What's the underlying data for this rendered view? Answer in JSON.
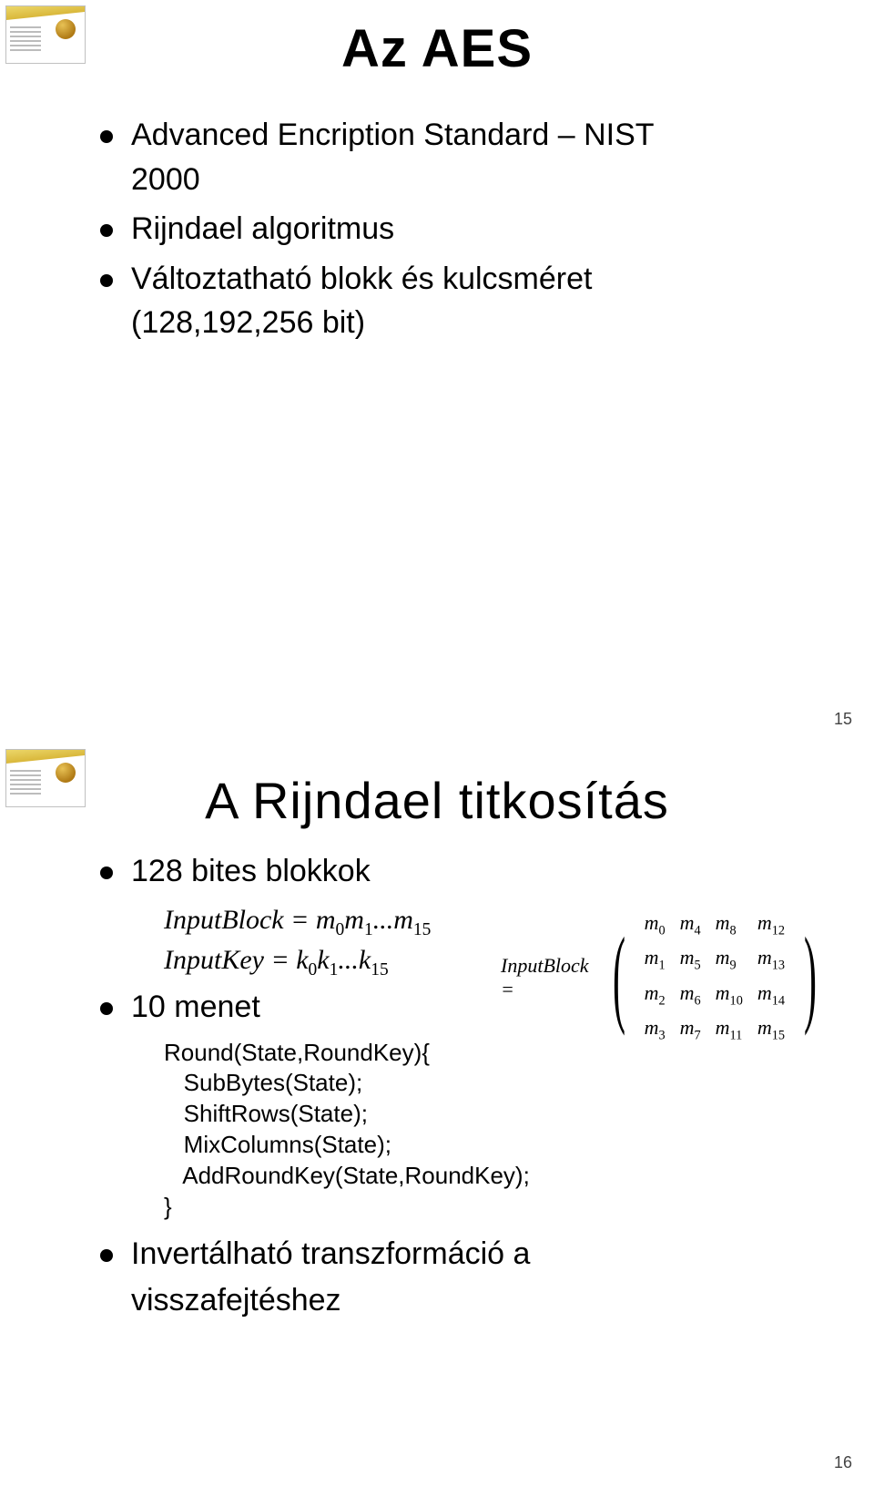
{
  "slide1": {
    "title": "Az AES",
    "bullets": [
      "Advanced Encription Standard – NIST",
      "Rijndael algoritmus",
      "Változtatható blokk és kulcsméret"
    ],
    "year": "2000",
    "sizes": "(128,192,256 bit)",
    "pagenum": "15"
  },
  "slide2": {
    "title": "A Rijndael titkosítás",
    "bullet_blocks": "128 bites blokkok",
    "math_inputblock": "InputBlock = m",
    "math_inputblock_sub": "0",
    "math_inputblock_m1": "m",
    "math_inputblock_sub1": "1",
    "math_dots": "...",
    "math_m15": "m",
    "math_m15_sub": "15",
    "math_inputkey": "InputKey = k",
    "math_inputkey_sub0": "0",
    "math_k1": "k",
    "math_k1_sub": "1",
    "math_k15": "k",
    "math_k15_sub": "15",
    "bullet_rounds": "10 menet",
    "code_l1": "Round(State,RoundKey){",
    "code_l2": "   SubBytes(State);",
    "code_l3": "   ShiftRows(State);",
    "code_l4": "   MixColumns(State);",
    "code_l5": "   AddRoundKey(State,RoundKey);",
    "code_l6": "}",
    "bullet_invert1": "Invertálható transzformáció a",
    "bullet_invert2": "visszafejtéshez",
    "matrix_lhs": "InputBlock =",
    "matrix": [
      [
        "m<sub>0</sub>",
        "m<sub>4</sub>",
        "m<sub>8</sub>",
        "m<sub>12</sub>"
      ],
      [
        "m<sub>1</sub>",
        "m<sub>5</sub>",
        "m<sub>9</sub>",
        "m<sub>13</sub>"
      ],
      [
        "m<sub>2</sub>",
        "m<sub>6</sub>",
        "m<sub>10</sub>",
        "m<sub>14</sub>"
      ],
      [
        "m<sub>3</sub>",
        "m<sub>7</sub>",
        "m<sub>11</sub>",
        "m<sub>15</sub>"
      ]
    ],
    "pagenum": "16"
  },
  "colors": {
    "text": "#000000",
    "bullet": "#000000",
    "page_bg": "#ffffff",
    "pagenum": "#444444"
  }
}
